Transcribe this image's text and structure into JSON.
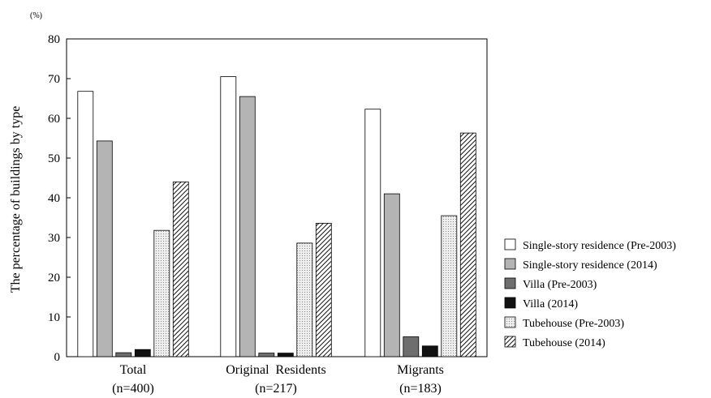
{
  "chart_data": {
    "type": "bar",
    "unit": "(%)",
    "ylabel": "The percentage of buildings by type",
    "xlabel": "",
    "ylim": [
      0,
      80
    ],
    "yticks": [
      0,
      10,
      20,
      30,
      40,
      50,
      60,
      70,
      80
    ],
    "grid": false,
    "legend_position": "right",
    "categories": [
      {
        "name": "Total",
        "n": "(n=400)"
      },
      {
        "name": "Original  Residents",
        "n": "(n=217)"
      },
      {
        "name": "Migrants",
        "n": "(n=183)"
      }
    ],
    "series": [
      {
        "name": "Single-story residence (Pre-2003)",
        "values": [
          66.8,
          70.5,
          62.3
        ],
        "fill": "#ffffff",
        "pattern": "none"
      },
      {
        "name": "Single-story residence (2014)",
        "values": [
          54.3,
          65.5,
          41.0
        ],
        "fill": "#b4b4b4",
        "pattern": "none"
      },
      {
        "name": "Villa (Pre-2003)",
        "values": [
          1.0,
          0.9,
          5.0
        ],
        "fill": "#6e6e6e",
        "pattern": "none"
      },
      {
        "name": "Villa (2014)",
        "values": [
          1.8,
          0.9,
          2.7
        ],
        "fill": "#111111",
        "pattern": "none"
      },
      {
        "name": "Tubehouse (Pre-2003)",
        "values": [
          31.8,
          28.6,
          35.5
        ],
        "fill": "#e6e6e6",
        "pattern": "dots"
      },
      {
        "name": "Tubehouse (2014)",
        "values": [
          44.0,
          33.6,
          56.3
        ],
        "fill": "#ffffff",
        "pattern": "diagonal"
      }
    ]
  }
}
